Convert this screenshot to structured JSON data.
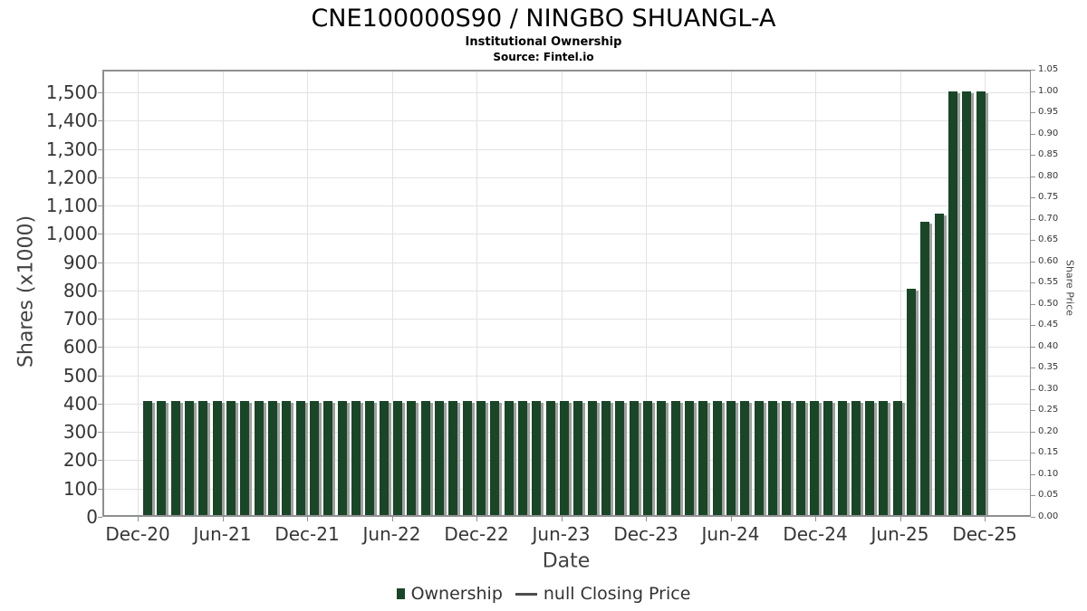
{
  "chart_data": {
    "type": "bar",
    "title": "CNE100000S90 / NINGBO SHUANGL-A",
    "subtitle": "Institutional Ownership",
    "source": "Source: Fintel.io",
    "xlabel": "Date",
    "ylabel_left": "Shares (x1000)",
    "ylabel_right": "Share Price",
    "x_tick_labels": [
      "Dec-20",
      "Jun-21",
      "Dec-21",
      "Jun-22",
      "Dec-22",
      "Jun-23",
      "Dec-23",
      "Jun-24",
      "Dec-24",
      "Jun-25",
      "Dec-25"
    ],
    "y_tick_labels_left": [
      "0",
      "100",
      "200",
      "300",
      "400",
      "500",
      "600",
      "700",
      "800",
      "900",
      "1,000",
      "1,100",
      "1,200",
      "1,300",
      "1,400",
      "1,500"
    ],
    "y_tick_labels_right": [
      "0.00",
      "0.05",
      "0.10",
      "0.15",
      "0.20",
      "0.25",
      "0.30",
      "0.35",
      "0.40",
      "0.45",
      "0.50",
      "0.55",
      "0.60",
      "0.65",
      "0.70",
      "0.75",
      "0.80",
      "0.85",
      "0.90",
      "0.95",
      "1.00",
      "1.05"
    ],
    "ylim_left": [
      0,
      1580
    ],
    "ylim_right": [
      0,
      1.05
    ],
    "grid": true,
    "legend_position": "bottom-center",
    "series": [
      {
        "name": "Ownership",
        "values": [
          405,
          405,
          405,
          405,
          405,
          405,
          405,
          405,
          405,
          405,
          405,
          405,
          405,
          405,
          405,
          405,
          405,
          405,
          405,
          405,
          405,
          405,
          405,
          405,
          405,
          405,
          405,
          405,
          405,
          405,
          405,
          405,
          405,
          405,
          405,
          405,
          405,
          405,
          405,
          405,
          405,
          405,
          405,
          405,
          405,
          405,
          405,
          405,
          405,
          405,
          405,
          405,
          405,
          405,
          405,
          805,
          1045,
          1075,
          1510,
          1510,
          1510
        ]
      },
      {
        "name": "null Closing Price",
        "values": []
      }
    ],
    "legend": [
      {
        "label": "Ownership",
        "swatch": "square"
      },
      {
        "label": "null Closing Price",
        "swatch": "line"
      }
    ]
  },
  "colors": {
    "bar": "#1a4628",
    "bar_shadow": "#a0a0a0",
    "gridline": "#e2e2e2",
    "axis_border": "#8f8f8f",
    "tick_text": "#363636",
    "legend_line": "#4d4d4d"
  }
}
